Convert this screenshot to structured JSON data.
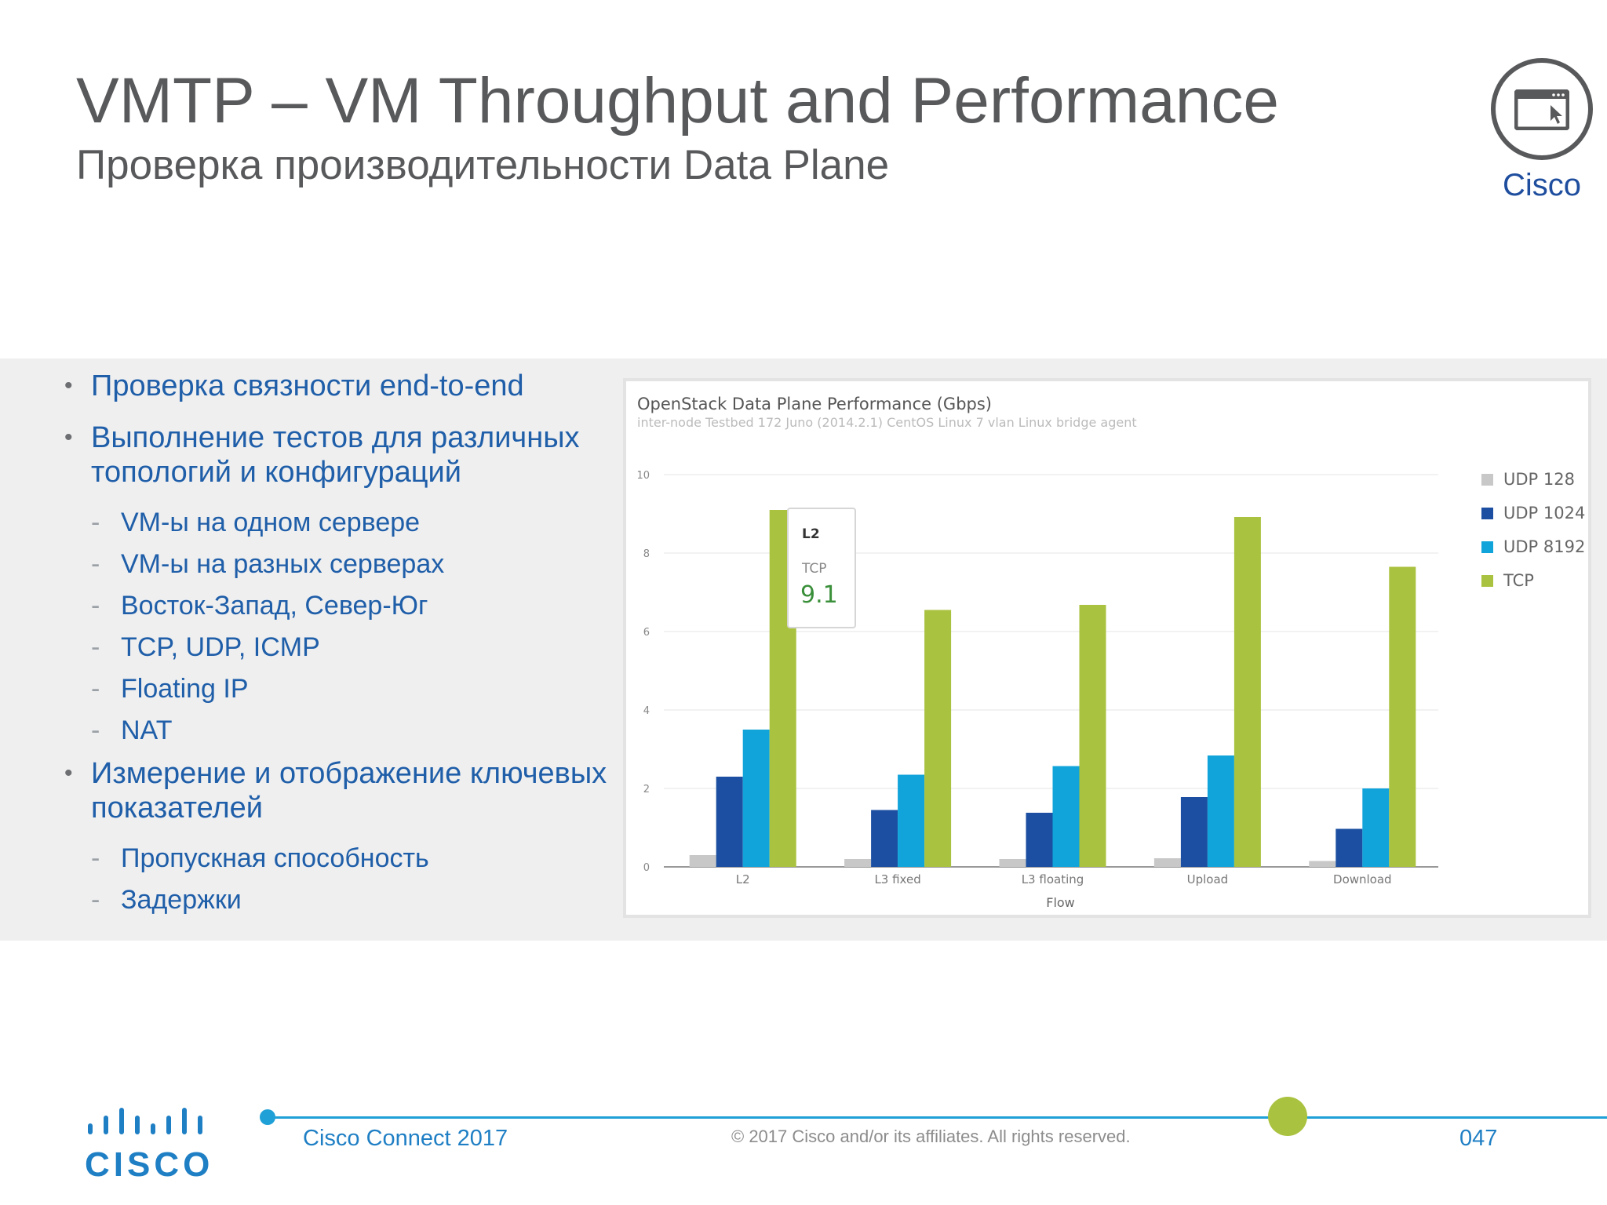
{
  "header": {
    "title": "VMTP – VM Throughput and Performance",
    "subtitle": "Проверка производительности Data Plane",
    "badge_icon": "browser-window-cursor-icon",
    "badge_label": "Cisco"
  },
  "bullets": [
    {
      "text": "Проверка связности end-to-end",
      "subitems": []
    },
    {
      "text": "Выполнение тестов для различных топологий и конфигураций",
      "subitems": [
        "VM-ы на одном сервере",
        "VM-ы на разных серверах",
        "Восток-Запад, Север-Юг",
        "TCP, UDP, ICMP",
        "Floating IP",
        "NAT"
      ]
    },
    {
      "text": "Измерение и отображение ключевых показателей",
      "subitems": [
        "Пропускная способность",
        "Задержки"
      ]
    }
  ],
  "bullet_symbol": "•",
  "dash_symbol": "-",
  "chart_data": {
    "type": "bar",
    "title": "OpenStack Data Plane Performance (Gbps)",
    "subtitle": "inter-node Testbed 172 Juno (2014.2.1) CentOS Linux 7 vlan Linux bridge agent",
    "xlabel": "Flow",
    "ylabel": "",
    "ylim": [
      0,
      10
    ],
    "yticks": [
      "0",
      "2",
      "4",
      "6",
      "8",
      "10"
    ],
    "categories": [
      "L2",
      "L3 fixed",
      "L3 floating",
      "Upload",
      "Download"
    ],
    "series": [
      {
        "name": "UDP 128",
        "color": "#c8c8c8",
        "values": [
          0.3,
          0.2,
          0.2,
          0.22,
          0.15
        ]
      },
      {
        "name": "UDP 1024",
        "color": "#1c4fa1",
        "values": [
          2.3,
          1.45,
          1.38,
          1.78,
          0.97
        ]
      },
      {
        "name": "UDP 8192",
        "color": "#11a4da",
        "values": [
          3.5,
          2.35,
          2.57,
          2.84,
          2.0
        ]
      },
      {
        "name": "TCP",
        "color": "#a9c23f",
        "values": [
          9.1,
          6.55,
          6.68,
          8.92,
          7.65
        ]
      }
    ],
    "grid": true,
    "legend": "right",
    "tooltip": {
      "category": "L2",
      "series": "TCP",
      "value": "9.1"
    }
  },
  "footer": {
    "event": "Cisco Connect 2017",
    "copyright": "© 2017  Cisco and/or its affiliates. All rights reserved.",
    "page": "047",
    "logo_text": "CISCO",
    "accent": "#1fa0d6",
    "dot_color": "#a9c23f"
  }
}
